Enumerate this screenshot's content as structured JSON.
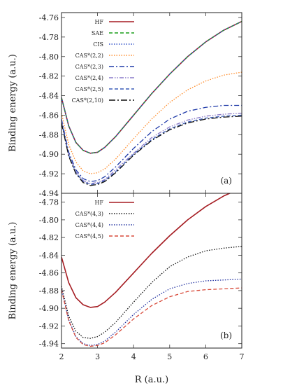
{
  "chart_data": [
    {
      "type": "line",
      "panel_label": "(a)",
      "xlabel": "",
      "ylabel": "Binding energy (a.u.)",
      "xlim": [
        2,
        7
      ],
      "ylim": [
        -4.94,
        -4.755
      ],
      "xticks": [],
      "yticks": [
        "-4.76",
        "-4.78",
        "-4.80",
        "-4.82",
        "-4.84",
        "-4.86",
        "-4.88",
        "-4.90",
        "-4.92",
        "-4.94"
      ],
      "legend": "top-left",
      "series": [
        {
          "name": "HF",
          "color": "#a51c22",
          "dash": "solid",
          "x": [
            2.0,
            2.2,
            2.4,
            2.6,
            2.8,
            3.0,
            3.2,
            3.5,
            4.0,
            4.5,
            5.0,
            5.5,
            6.0,
            6.5,
            7.0
          ],
          "y": [
            -4.842,
            -4.871,
            -4.888,
            -4.896,
            -4.899,
            -4.898,
            -4.893,
            -4.882,
            -4.86,
            -4.838,
            -4.818,
            -4.8,
            -4.785,
            -4.773,
            -4.764
          ]
        },
        {
          "name": "SAE",
          "color": "#1a9d1a",
          "dash": "dashed",
          "x": [
            2.0,
            2.2,
            2.4,
            2.6,
            2.8,
            3.0,
            3.2,
            3.5,
            4.0,
            4.5,
            5.0,
            5.5,
            6.0,
            6.5,
            7.0
          ],
          "y": [
            -4.842,
            -4.871,
            -4.888,
            -4.896,
            -4.899,
            -4.898,
            -4.893,
            -4.882,
            -4.86,
            -4.838,
            -4.818,
            -4.8,
            -4.785,
            -4.773,
            -4.764
          ]
        },
        {
          "name": "CIS",
          "color": "#3050c8",
          "dash": "dotted",
          "x": [
            2.0,
            2.2,
            2.4,
            2.6,
            2.8,
            3.0,
            3.2,
            3.5,
            4.0,
            4.5,
            5.0,
            5.5,
            6.0,
            6.5,
            7.0
          ],
          "y": [
            -4.842,
            -4.871,
            -4.888,
            -4.896,
            -4.899,
            -4.898,
            -4.893,
            -4.882,
            -4.86,
            -4.838,
            -4.818,
            -4.8,
            -4.785,
            -4.773,
            -4.764
          ]
        },
        {
          "name": "CAS*(2,2)",
          "color": "#ff8c2a",
          "dash": "dotted",
          "x": [
            2.0,
            2.2,
            2.4,
            2.6,
            2.8,
            3.0,
            3.2,
            3.5,
            4.0,
            4.5,
            5.0,
            5.5,
            6.0,
            6.5,
            7.0
          ],
          "y": [
            -4.858,
            -4.89,
            -4.908,
            -4.917,
            -4.92,
            -4.919,
            -4.915,
            -4.905,
            -4.884,
            -4.864,
            -4.847,
            -4.834,
            -4.825,
            -4.819,
            -4.816
          ]
        },
        {
          "name": "CAS*(2,3)",
          "color": "#1f3aa8",
          "dash": "dashdot",
          "x": [
            2.0,
            2.2,
            2.4,
            2.6,
            2.8,
            3.0,
            3.2,
            3.5,
            4.0,
            4.5,
            5.0,
            5.5,
            6.0,
            6.5,
            7.0
          ],
          "y": [
            -4.864,
            -4.898,
            -4.916,
            -4.925,
            -4.928,
            -4.927,
            -4.923,
            -4.913,
            -4.894,
            -4.877,
            -4.864,
            -4.856,
            -4.852,
            -4.85,
            -4.85
          ]
        },
        {
          "name": "CAS*(2,4)",
          "color": "#8a7ac8",
          "dash": "dashdotdot",
          "x": [
            2.0,
            2.2,
            2.4,
            2.6,
            2.8,
            3.0,
            3.2,
            3.5,
            4.0,
            4.5,
            5.0,
            5.5,
            6.0,
            6.5,
            7.0
          ],
          "y": [
            -4.866,
            -4.9,
            -4.918,
            -4.927,
            -4.93,
            -4.929,
            -4.926,
            -4.916,
            -4.899,
            -4.883,
            -4.872,
            -4.865,
            -4.861,
            -4.859,
            -4.858
          ]
        },
        {
          "name": "CAS*(2,5)",
          "color": "#3a5cb8",
          "dash": "dashed",
          "x": [
            2.0,
            2.2,
            2.4,
            2.6,
            2.8,
            3.0,
            3.2,
            3.5,
            4.0,
            4.5,
            5.0,
            5.5,
            6.0,
            6.5,
            7.0
          ],
          "y": [
            -4.867,
            -4.901,
            -4.919,
            -4.928,
            -4.931,
            -4.93,
            -4.927,
            -4.918,
            -4.9,
            -4.885,
            -4.874,
            -4.867,
            -4.863,
            -4.861,
            -4.86
          ]
        },
        {
          "name": "CAS*(2,10)",
          "color": "#111111",
          "dash": "longdashdot",
          "x": [
            2.0,
            2.2,
            2.4,
            2.6,
            2.8,
            3.0,
            3.2,
            3.5,
            4.0,
            4.5,
            5.0,
            5.5,
            6.0,
            6.5,
            7.0
          ],
          "y": [
            -4.868,
            -4.902,
            -4.92,
            -4.929,
            -4.932,
            -4.931,
            -4.928,
            -4.919,
            -4.901,
            -4.886,
            -4.875,
            -4.868,
            -4.864,
            -4.862,
            -4.861
          ]
        }
      ]
    },
    {
      "type": "line",
      "panel_label": "(b)",
      "xlabel": "R (a.u.)",
      "ylabel": "Binding energy (a.u.)",
      "xlim": [
        2,
        7
      ],
      "ylim": [
        -4.945,
        -4.77
      ],
      "xticks": [
        "2",
        "3",
        "4",
        "5",
        "6",
        "7"
      ],
      "yticks": [
        "-4.78",
        "-4.80",
        "-4.82",
        "-4.84",
        "-4.86",
        "-4.88",
        "-4.90",
        "-4.92",
        "-4.94"
      ],
      "legend": "top-left",
      "series": [
        {
          "name": "HF",
          "color": "#a51c22",
          "dash": "solid",
          "x": [
            2.0,
            2.2,
            2.4,
            2.6,
            2.8,
            3.0,
            3.2,
            3.5,
            4.0,
            4.5,
            5.0,
            5.5,
            6.0,
            6.5,
            7.0
          ],
          "y": [
            -4.842,
            -4.871,
            -4.888,
            -4.896,
            -4.899,
            -4.898,
            -4.893,
            -4.882,
            -4.86,
            -4.838,
            -4.818,
            -4.8,
            -4.785,
            -4.773,
            -4.764
          ]
        },
        {
          "name": "CAS*(4,3)",
          "color": "#111111",
          "dash": "dotted",
          "x": [
            2.0,
            2.2,
            2.4,
            2.6,
            2.8,
            3.0,
            3.2,
            3.5,
            4.0,
            4.5,
            5.0,
            5.5,
            6.0,
            6.5,
            7.0
          ],
          "y": [
            -4.875,
            -4.909,
            -4.926,
            -4.933,
            -4.934,
            -4.932,
            -4.927,
            -4.916,
            -4.893,
            -4.871,
            -4.853,
            -4.842,
            -4.835,
            -4.832,
            -4.83
          ]
        },
        {
          "name": "CAS*(4,4)",
          "color": "#2030a0",
          "dash": "dotted",
          "x": [
            2.0,
            2.2,
            2.4,
            2.6,
            2.8,
            3.0,
            3.2,
            3.5,
            4.0,
            4.5,
            5.0,
            5.5,
            6.0,
            6.5,
            7.0
          ],
          "y": [
            -4.878,
            -4.913,
            -4.932,
            -4.94,
            -4.942,
            -4.941,
            -4.937,
            -4.927,
            -4.907,
            -4.89,
            -4.878,
            -4.872,
            -4.869,
            -4.868,
            -4.867
          ]
        },
        {
          "name": "CAS*(4,5)",
          "color": "#d84a3a",
          "dash": "dashed",
          "x": [
            2.0,
            2.2,
            2.4,
            2.6,
            2.8,
            3.0,
            3.2,
            3.5,
            4.0,
            4.5,
            5.0,
            5.5,
            6.0,
            6.5,
            7.0
          ],
          "y": [
            -4.879,
            -4.914,
            -4.933,
            -4.941,
            -4.943,
            -4.942,
            -4.939,
            -4.93,
            -4.912,
            -4.897,
            -4.887,
            -4.881,
            -4.879,
            -4.878,
            -4.877
          ]
        }
      ]
    }
  ]
}
